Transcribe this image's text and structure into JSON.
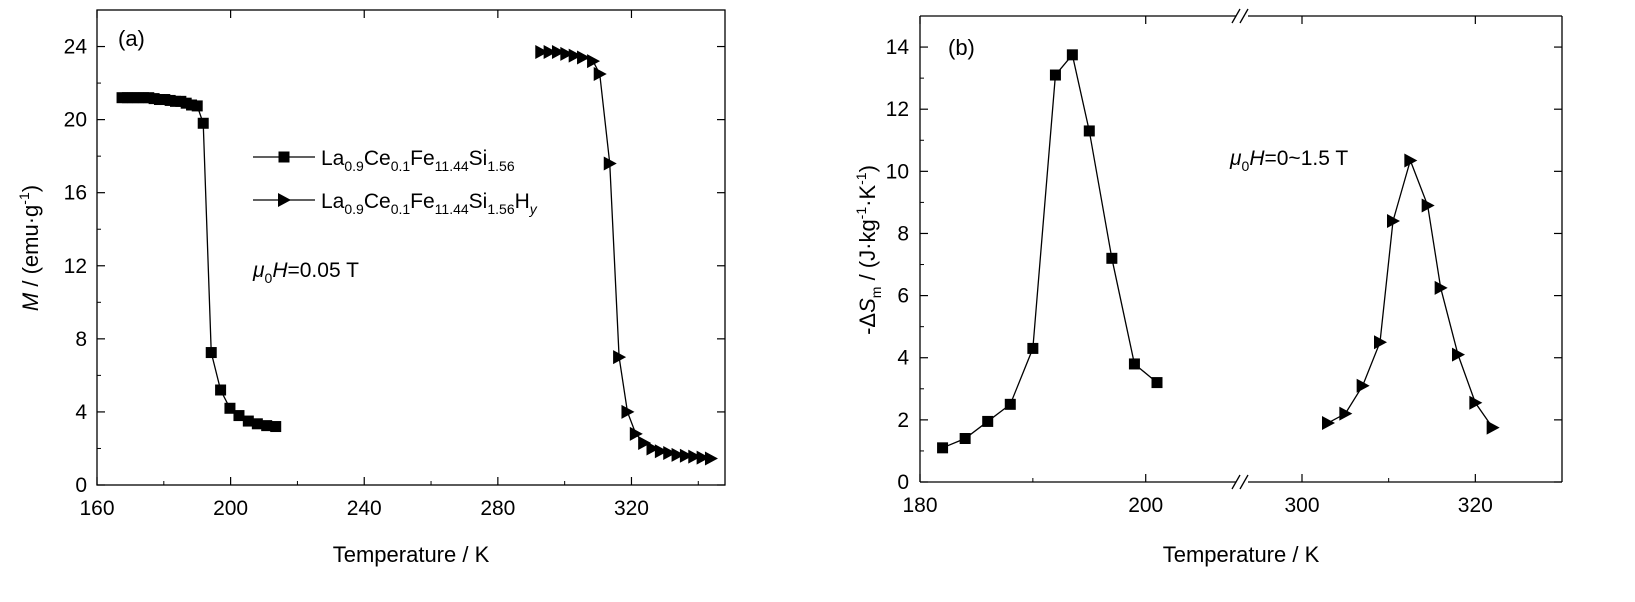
{
  "chart_data": [
    {
      "type": "scatter",
      "panel_label": "(a)",
      "xlabel": "Temperature / K",
      "ylabel": "M / (emu·g-1)",
      "xlim": [
        160,
        348
      ],
      "ylim": [
        0,
        26
      ],
      "xticks": [
        "160",
        "200",
        "240",
        "280",
        "320"
      ],
      "yticks": [
        "0",
        "4",
        "8",
        "12",
        "16",
        "20",
        "24"
      ],
      "annotation": "μ0H=0.05 T",
      "legend": "center-left",
      "series": [
        {
          "name": "La0.9Ce0.1Fe11.44Si1.56",
          "marker": "square",
          "x": [
            167.5,
            169.1,
            170.7,
            172.3,
            173.9,
            175.5,
            177.1,
            178.7,
            180.3,
            181.9,
            183.5,
            185.1,
            186.7,
            188.3,
            190.0,
            191.8,
            194.2,
            197.0,
            199.8,
            202.5,
            205.3,
            208.0,
            210.8,
            213.5
          ],
          "y": [
            21.2,
            21.2,
            21.2,
            21.2,
            21.2,
            21.2,
            21.15,
            21.1,
            21.1,
            21.05,
            21.0,
            21.0,
            20.9,
            20.8,
            20.75,
            19.8,
            7.25,
            5.2,
            4.2,
            3.8,
            3.5,
            3.35,
            3.25,
            3.2
          ]
        },
        {
          "name": "La0.9Ce0.1Fe11.44Si1.56Hy",
          "marker": "triangle-right",
          "x": [
            293.0,
            295.5,
            298.0,
            300.5,
            303.0,
            305.5,
            308.5,
            310.5,
            313.5,
            316.3,
            318.8,
            321.3,
            323.8,
            326.3,
            328.8,
            331.3,
            333.8,
            336.3,
            338.8,
            341.3,
            343.8
          ],
          "y": [
            23.7,
            23.7,
            23.7,
            23.6,
            23.5,
            23.4,
            23.2,
            22.5,
            17.6,
            7.0,
            4.0,
            2.8,
            2.3,
            2.0,
            1.85,
            1.75,
            1.65,
            1.6,
            1.55,
            1.5,
            1.45
          ]
        }
      ]
    },
    {
      "type": "line",
      "panel_label": "(b)",
      "xlabel": "Temperature / K",
      "ylabel": "-ΔSm / (J·kg-1·K-1)",
      "ylim": [
        0,
        15
      ],
      "xticks": [
        "180",
        "200",
        "300",
        "320"
      ],
      "yticks": [
        "0",
        "2",
        "4",
        "6",
        "8",
        "10",
        "12",
        "14"
      ],
      "broken_x_axis": {
        "left_range": [
          180,
          208
        ],
        "right_range": [
          294,
          330
        ]
      },
      "annotation": "μ0H=0~1.5 T",
      "series": [
        {
          "name": "La0.9Ce0.1Fe11.44Si1.56",
          "marker": "square",
          "x": [
            182,
            184,
            186,
            188,
            190,
            192,
            193.5,
            195,
            197,
            199,
            201
          ],
          "y": [
            1.1,
            1.4,
            1.95,
            2.5,
            4.3,
            13.1,
            13.75,
            11.3,
            7.2,
            3.8,
            3.2
          ]
        },
        {
          "name": "La0.9Ce0.1Fe11.44Si1.56Hy",
          "marker": "triangle-right",
          "x": [
            303,
            305,
            307,
            309,
            310.5,
            312.5,
            314.5,
            316,
            318,
            320,
            322
          ],
          "y": [
            1.9,
            2.2,
            3.1,
            4.5,
            8.4,
            10.35,
            8.9,
            6.25,
            4.1,
            2.55,
            1.75
          ]
        }
      ]
    }
  ],
  "legend_items": [
    {
      "base": "La",
      "parts": [
        [
          "0.9",
          "Ce"
        ],
        [
          "0.1",
          "Fe"
        ],
        [
          "11.44",
          "Si"
        ],
        [
          "1.56",
          ""
        ]
      ],
      "suffix": ""
    },
    {
      "base": "La",
      "parts": [
        [
          "0.9",
          "Ce"
        ],
        [
          "0.1",
          "Fe"
        ],
        [
          "11.44",
          "Si"
        ],
        [
          "1.56",
          "H"
        ]
      ],
      "suffix": "y"
    }
  ]
}
